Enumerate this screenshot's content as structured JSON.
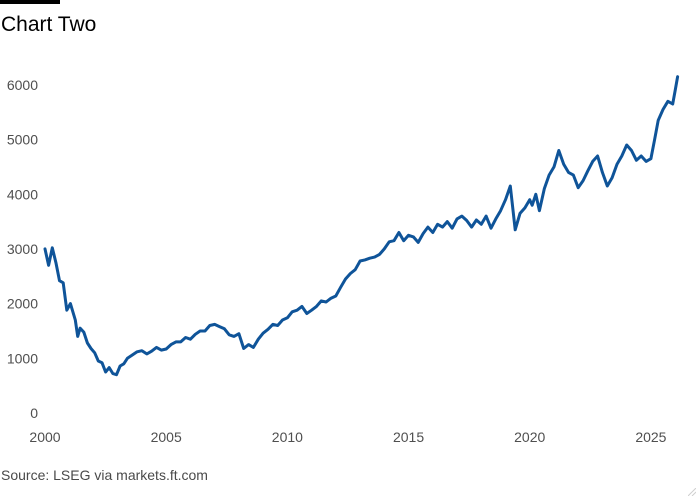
{
  "title": "Chart Two",
  "source": "Source: LSEG via markets.ft.com",
  "chart_data": {
    "type": "line",
    "title": "Chart Two",
    "xlabel": "",
    "ylabel": "",
    "xlim": [
      2000,
      2026.2
    ],
    "ylim": [
      0,
      6400
    ],
    "x_ticks": [
      2000,
      2005,
      2010,
      2015,
      2020,
      2025
    ],
    "y_ticks": [
      0,
      1000,
      2000,
      3000,
      4000,
      5000,
      6000
    ],
    "grid": false,
    "legend": "none",
    "line_color": "#0f5499",
    "series": [
      {
        "x": [
          2000.0,
          2000.15,
          2000.3,
          2000.45,
          2000.6,
          2000.75,
          2000.9,
          2001.05,
          2001.25,
          2001.35,
          2001.45,
          2001.6,
          2001.75,
          2001.9,
          2002.05,
          2002.2,
          2002.35,
          2002.5,
          2002.65,
          2002.8,
          2002.95,
          2003.1,
          2003.25,
          2003.4,
          2003.6,
          2003.8,
          2004.0,
          2004.2,
          2004.4,
          2004.6,
          2004.8,
          2005.0,
          2005.2,
          2005.4,
          2005.6,
          2005.8,
          2006.0,
          2006.2,
          2006.4,
          2006.6,
          2006.8,
          2007.0,
          2007.2,
          2007.4,
          2007.6,
          2007.8,
          2008.0,
          2008.2,
          2008.4,
          2008.6,
          2008.8,
          2009.0,
          2009.2,
          2009.4,
          2009.6,
          2009.8,
          2010.0,
          2010.2,
          2010.4,
          2010.6,
          2010.8,
          2011.0,
          2011.2,
          2011.4,
          2011.6,
          2011.8,
          2012.0,
          2012.2,
          2012.4,
          2012.6,
          2012.8,
          2013.0,
          2013.2,
          2013.4,
          2013.6,
          2013.8,
          2014.0,
          2014.2,
          2014.4,
          2014.6,
          2014.8,
          2015.0,
          2015.2,
          2015.4,
          2015.6,
          2015.8,
          2016.0,
          2016.2,
          2016.4,
          2016.6,
          2016.8,
          2017.0,
          2017.2,
          2017.4,
          2017.6,
          2017.8,
          2018.0,
          2018.2,
          2018.4,
          2018.6,
          2018.8,
          2019.0,
          2019.2,
          2019.4,
          2019.6,
          2019.8,
          2020.0,
          2020.1,
          2020.25,
          2020.4,
          2020.6,
          2020.8,
          2021.0,
          2021.2,
          2021.4,
          2021.6,
          2021.8,
          2022.0,
          2022.2,
          2022.4,
          2022.6,
          2022.8,
          2023.0,
          2023.2,
          2023.4,
          2023.6,
          2023.8,
          2024.0,
          2024.2,
          2024.4,
          2024.6,
          2024.8,
          2025.0,
          2025.15,
          2025.3,
          2025.5,
          2025.7,
          2025.9,
          2026.0,
          2026.1
        ],
        "values": [
          3000,
          2700,
          3020,
          2750,
          2420,
          2380,
          1880,
          2000,
          1700,
          1400,
          1550,
          1480,
          1280,
          1180,
          1100,
          950,
          920,
          750,
          830,
          720,
          700,
          860,
          900,
          1000,
          1060,
          1120,
          1140,
          1080,
          1130,
          1200,
          1150,
          1170,
          1250,
          1300,
          1300,
          1380,
          1350,
          1440,
          1500,
          1500,
          1600,
          1620,
          1580,
          1540,
          1430,
          1400,
          1450,
          1180,
          1250,
          1200,
          1350,
          1460,
          1530,
          1620,
          1600,
          1700,
          1740,
          1850,
          1880,
          1950,
          1820,
          1880,
          1950,
          2050,
          2030,
          2100,
          2140,
          2300,
          2450,
          2550,
          2620,
          2780,
          2800,
          2830,
          2850,
          2900,
          3000,
          3130,
          3150,
          3300,
          3150,
          3250,
          3220,
          3120,
          3280,
          3400,
          3300,
          3450,
          3400,
          3500,
          3380,
          3550,
          3600,
          3520,
          3400,
          3530,
          3450,
          3600,
          3380,
          3550,
          3700,
          3900,
          4150,
          3350,
          3650,
          3750,
          3900,
          3800,
          4000,
          3700,
          4100,
          4350,
          4500,
          4800,
          4550,
          4400,
          4350,
          4120,
          4250,
          4430,
          4600,
          4700,
          4400,
          4150,
          4300,
          4550,
          4700,
          4900,
          4800,
          4620,
          4700,
          4600,
          4650,
          5000,
          5350,
          5550,
          5700,
          5650,
          5900,
          6150
        ]
      }
    ]
  }
}
